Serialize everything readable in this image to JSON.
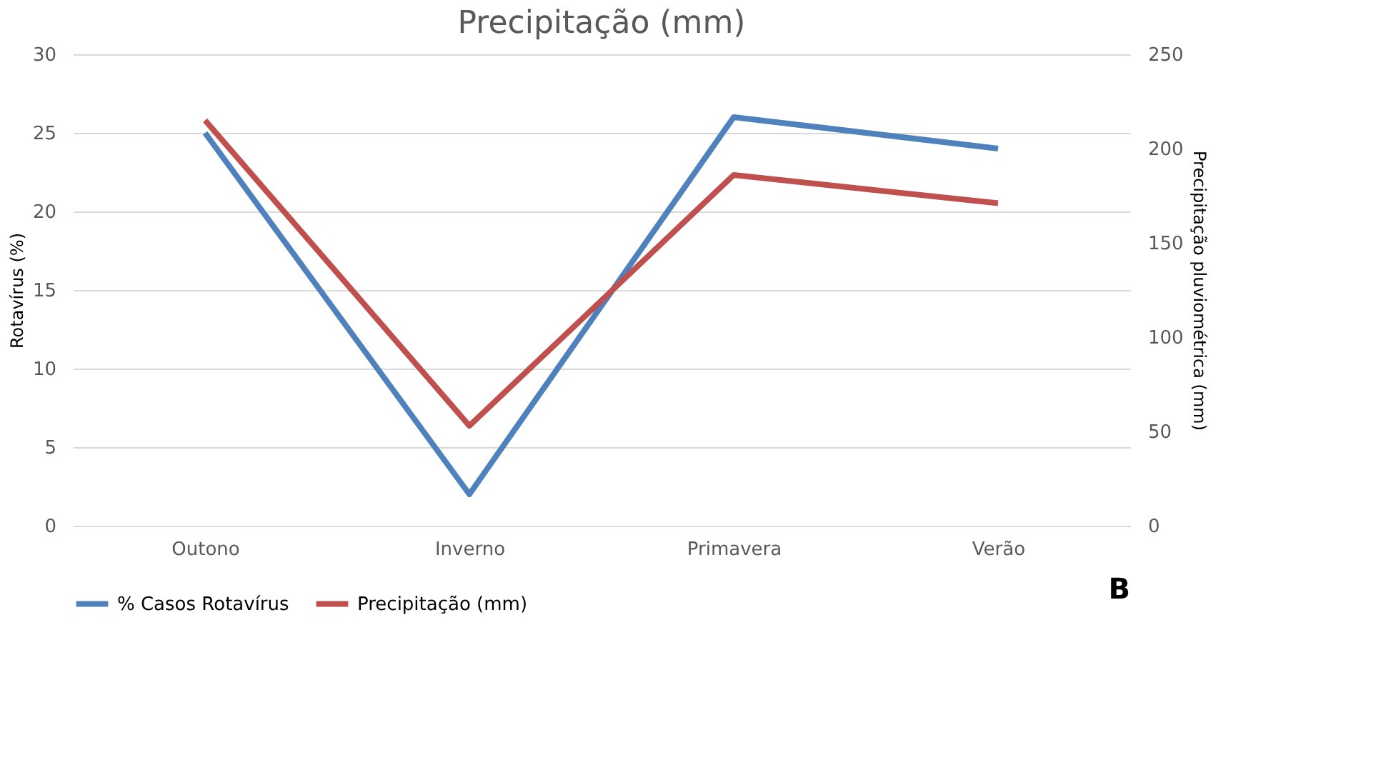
{
  "chart_data": {
    "type": "line",
    "title": "Precipitação (mm)",
    "ylabel": "Rotavírus (%)",
    "y2label": "Precipitação  pluviométrica (mm)",
    "categories": [
      "Outono",
      "Inverno",
      "Primavera",
      "Verão"
    ],
    "series": [
      {
        "name": "% Casos Rotavírus",
        "color": "#4f81bd",
        "values": [
          25,
          2,
          26,
          24
        ]
      },
      {
        "name": "Precipitação (mm)",
        "color": "#c0504d",
        "values": [
          215,
          53,
          186,
          171
        ],
        "axis": "y2"
      }
    ],
    "ylim": [
      0,
      30
    ],
    "yticks": [
      0,
      5,
      10,
      15,
      20,
      25,
      30
    ],
    "y2lim": [
      0,
      250
    ],
    "y2ticks": [
      0,
      50,
      100,
      150,
      200,
      250
    ],
    "grid": "y",
    "legend": "bottom",
    "marker": "none",
    "line_style": "solid",
    "annotations": [
      "B"
    ]
  }
}
